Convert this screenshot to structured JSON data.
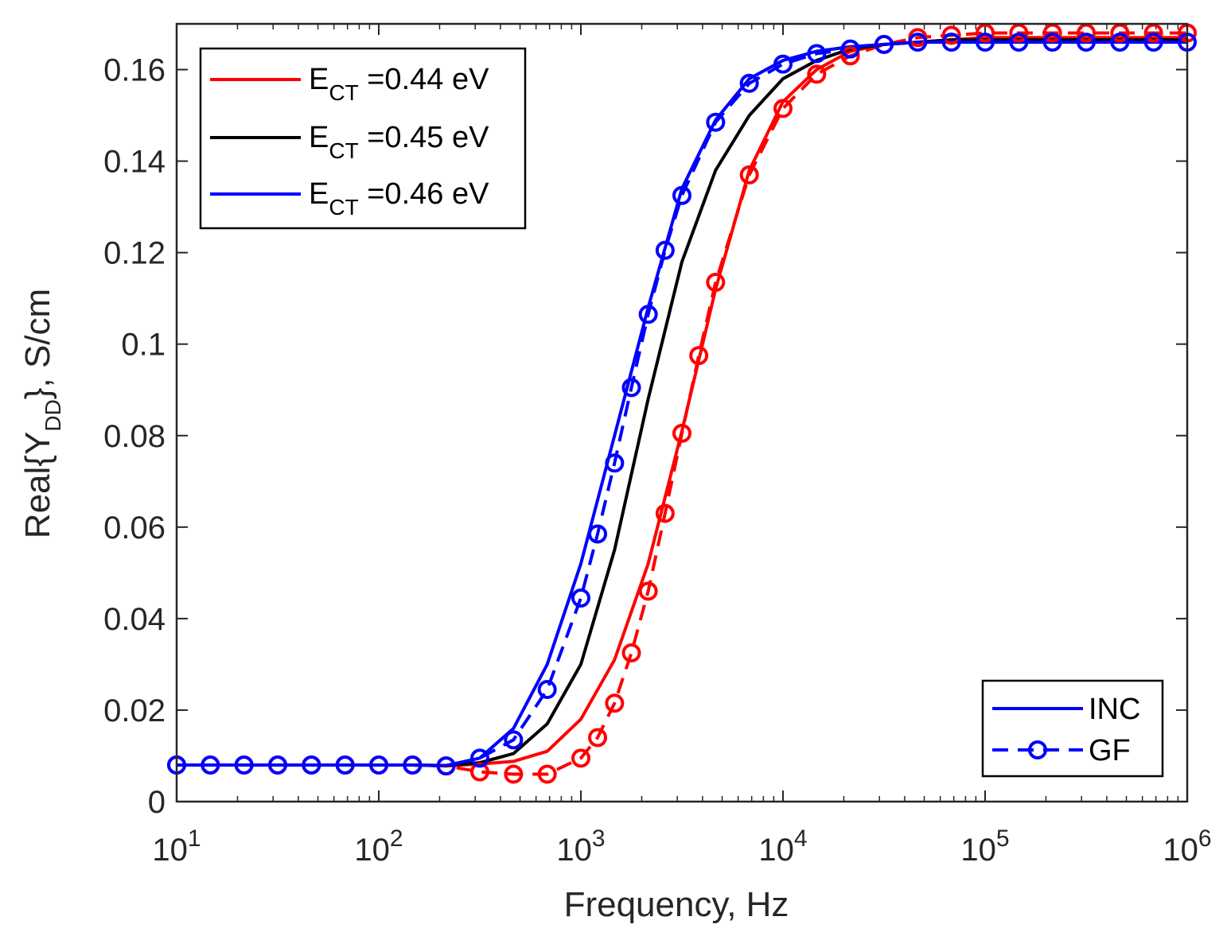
{
  "chart_data": {
    "type": "line",
    "xscale": "log",
    "xlabel": "Frequency, Hz",
    "ylabel": {
      "main": "Real{Y",
      "sub": "DD",
      "suffix": "}, S/cm"
    },
    "xlim": [
      10,
      1000000
    ],
    "ylim": [
      0,
      0.17
    ],
    "x_ticks": [
      {
        "base": "10",
        "exp": "1"
      },
      {
        "base": "10",
        "exp": "2"
      },
      {
        "base": "10",
        "exp": "3"
      },
      {
        "base": "10",
        "exp": "4"
      },
      {
        "base": "10",
        "exp": "5"
      },
      {
        "base": "10",
        "exp": "6"
      }
    ],
    "y_ticks": [
      "0",
      "0.02",
      "0.04",
      "0.06",
      "0.08",
      "0.1",
      "0.12",
      "0.14",
      "0.16"
    ],
    "y_tick_values": [
      0,
      0.02,
      0.04,
      0.06,
      0.08,
      0.1,
      0.12,
      0.14,
      0.16
    ],
    "legend_series": [
      {
        "main": "E",
        "sub": "CT",
        "rest": " =0.44 eV",
        "color": "#ff0000"
      },
      {
        "main": "E",
        "sub": "CT",
        "rest": " =0.45 eV",
        "color": "#000000"
      },
      {
        "main": "E",
        "sub": "CT",
        "rest": " =0.46 eV",
        "color": "#0000ff"
      }
    ],
    "legend_style": [
      {
        "label": "INC",
        "style": "solid",
        "color": "#0000ff"
      },
      {
        "label": "GF",
        "style": "dashed-circle",
        "color": "#0000ff"
      }
    ],
    "series_inc": [
      {
        "name": "INC E_CT=0.44 eV",
        "color": "#ff0000",
        "x": [
          10,
          14.68,
          21.54,
          31.62,
          46.42,
          68.13,
          100,
          146.8,
          215.4,
          316.2,
          464.2,
          681.3,
          1000,
          1468,
          2154,
          3162,
          4642,
          6813,
          10000,
          14680,
          21540,
          31620,
          46420,
          68130,
          100000,
          146800,
          215400,
          316200,
          464200,
          681300,
          1000000
        ],
        "y": [
          0.008,
          0.008,
          0.008,
          0.008,
          0.008,
          0.008,
          0.008,
          0.008,
          0.0078,
          0.0082,
          0.0088,
          0.011,
          0.018,
          0.031,
          0.052,
          0.081,
          0.112,
          0.138,
          0.153,
          0.16,
          0.164,
          0.1655,
          0.166,
          0.1665,
          0.167,
          0.167,
          0.167,
          0.167,
          0.167,
          0.167,
          0.167
        ]
      },
      {
        "name": "INC E_CT=0.45 eV",
        "color": "#000000",
        "x": [
          10,
          14.68,
          21.54,
          31.62,
          46.42,
          68.13,
          100,
          146.8,
          215.4,
          316.2,
          464.2,
          681.3,
          1000,
          1468,
          2154,
          3162,
          4642,
          6813,
          10000,
          14680,
          21540,
          31620,
          46420,
          68130,
          100000,
          146800,
          215400,
          316200,
          464200,
          681300,
          1000000
        ],
        "y": [
          0.008,
          0.008,
          0.008,
          0.008,
          0.008,
          0.008,
          0.008,
          0.008,
          0.0079,
          0.0085,
          0.0105,
          0.017,
          0.03,
          0.055,
          0.088,
          0.118,
          0.138,
          0.15,
          0.158,
          0.162,
          0.1645,
          0.1655,
          0.166,
          0.1665,
          0.1665,
          0.1665,
          0.1665,
          0.1665,
          0.1665,
          0.1665,
          0.1665
        ]
      },
      {
        "name": "INC E_CT=0.46 eV",
        "color": "#0000ff",
        "x": [
          10,
          14.68,
          21.54,
          31.62,
          46.42,
          68.13,
          100,
          146.8,
          215.4,
          316.2,
          464.2,
          681.3,
          1000,
          1468,
          2154,
          3162,
          4642,
          6813,
          10000,
          14680,
          21540,
          31620,
          46420,
          68130,
          100000,
          146800,
          215400,
          316200,
          464200,
          681300,
          1000000
        ],
        "y": [
          0.008,
          0.008,
          0.008,
          0.008,
          0.008,
          0.008,
          0.008,
          0.008,
          0.0079,
          0.0095,
          0.016,
          0.03,
          0.052,
          0.08,
          0.108,
          0.134,
          0.149,
          0.158,
          0.162,
          0.164,
          0.165,
          0.1655,
          0.166,
          0.166,
          0.166,
          0.166,
          0.166,
          0.166,
          0.166,
          0.166,
          0.166
        ]
      }
    ],
    "series_gf": [
      {
        "name": "GF E_CT=0.44 eV",
        "color": "#ff0000",
        "x": [
          10,
          14.68,
          21.54,
          31.62,
          46.42,
          68.13,
          100,
          146.8,
          215.4,
          316.2,
          464.2,
          681.3,
          1000,
          1210,
          1468,
          1778,
          2154,
          2610,
          3162,
          3831,
          4642,
          6813,
          10000,
          14680,
          21540,
          31620,
          46420,
          68130,
          100000,
          146800,
          215400,
          316200,
          464200,
          681300,
          1000000
        ],
        "y": [
          0.008,
          0.008,
          0.008,
          0.008,
          0.008,
          0.008,
          0.008,
          0.008,
          0.0078,
          0.0065,
          0.006,
          0.006,
          0.0095,
          0.014,
          0.0215,
          0.0325,
          0.046,
          0.063,
          0.0805,
          0.0975,
          0.1135,
          0.137,
          0.1515,
          0.159,
          0.163,
          0.1655,
          0.167,
          0.1675,
          0.168,
          0.168,
          0.168,
          0.168,
          0.168,
          0.168,
          0.168
        ]
      },
      {
        "name": "GF E_CT=0.46 eV",
        "color": "#0000ff",
        "x": [
          10,
          14.68,
          21.54,
          31.62,
          46.42,
          68.13,
          100,
          146.8,
          215.4,
          316.2,
          464.2,
          681.3,
          1000,
          1210,
          1468,
          1778,
          2154,
          2610,
          3162,
          4642,
          6813,
          10000,
          14680,
          21540,
          31620,
          46420,
          68130,
          100000,
          146800,
          215400,
          316200,
          464200,
          681300,
          1000000
        ],
        "y": [
          0.008,
          0.008,
          0.008,
          0.008,
          0.008,
          0.008,
          0.008,
          0.008,
          0.0078,
          0.0095,
          0.0135,
          0.0245,
          0.0445,
          0.0585,
          0.074,
          0.0905,
          0.1065,
          0.1205,
          0.1325,
          0.1485,
          0.157,
          0.1612,
          0.1635,
          0.1645,
          0.1655,
          0.166,
          0.166,
          0.166,
          0.166,
          0.166,
          0.166,
          0.166,
          0.166,
          0.166
        ]
      }
    ]
  }
}
